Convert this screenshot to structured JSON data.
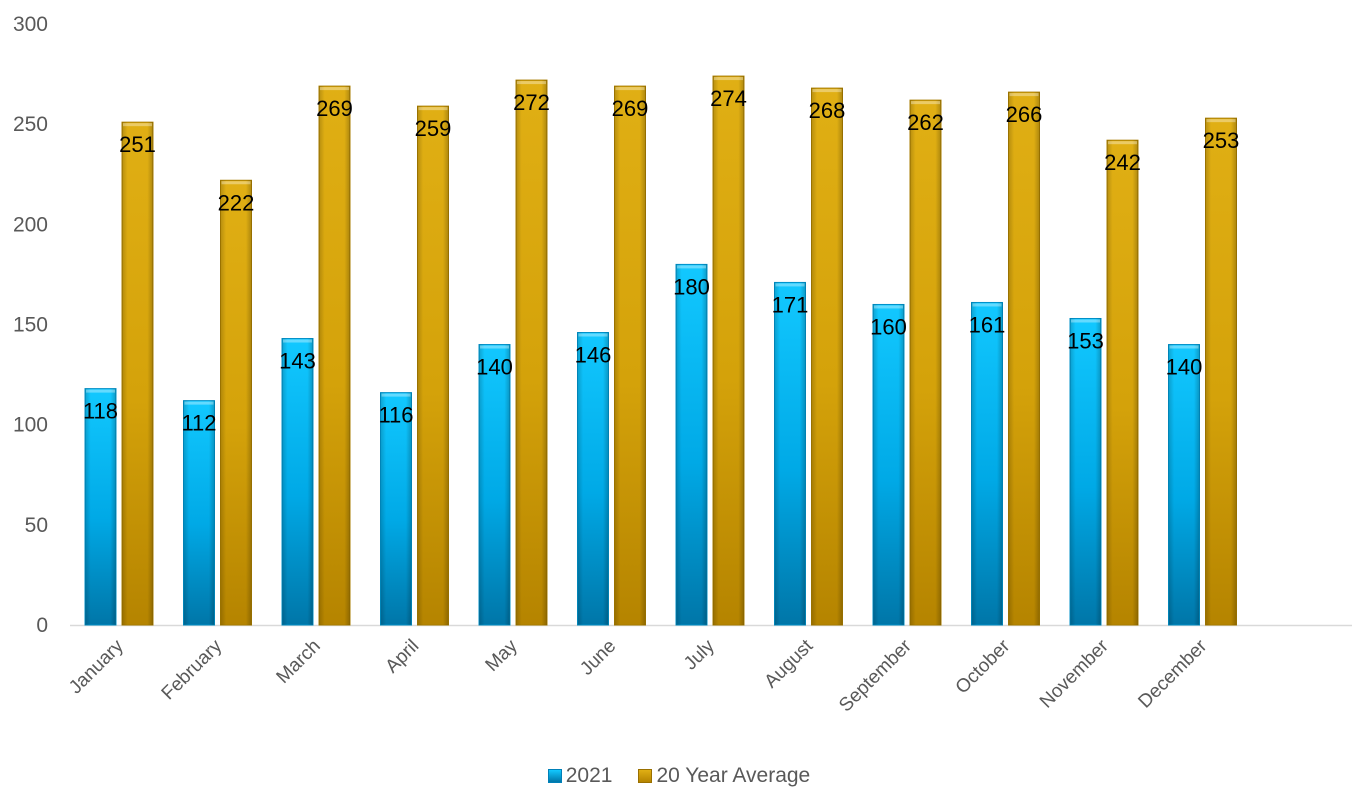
{
  "chart_data": {
    "type": "bar",
    "title": "",
    "xlabel": "",
    "ylabel": "",
    "ylim": [
      0,
      300
    ],
    "yticks": [
      0,
      50,
      100,
      150,
      200,
      250,
      300
    ],
    "grid": false,
    "legend_position": "bottom",
    "categories": [
      "January",
      "February",
      "March",
      "April",
      "May",
      "June",
      "July",
      "August",
      "September",
      "October",
      "November",
      "December"
    ],
    "series": [
      {
        "name": "2021",
        "color": "#00B0F0",
        "values": [
          118,
          112,
          143,
          116,
          140,
          146,
          180,
          171,
          160,
          161,
          153,
          140
        ]
      },
      {
        "name": "20 Year Average",
        "color": "#D4A20A",
        "values": [
          251,
          222,
          269,
          259,
          272,
          269,
          274,
          268,
          262,
          266,
          242,
          253
        ]
      }
    ]
  }
}
